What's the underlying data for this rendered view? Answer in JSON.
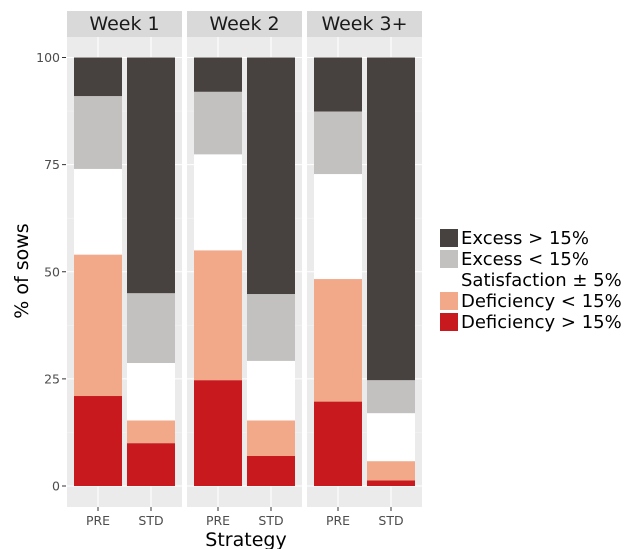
{
  "chart_data": {
    "type": "bar",
    "stacked": true,
    "faceted": true,
    "xlabel": "Strategy",
    "ylabel": "% of sows",
    "ylim": [
      0,
      100
    ],
    "yticks": [
      "0",
      "25",
      "50",
      "75",
      "100"
    ],
    "grid": true,
    "legend_position": "right",
    "categories": [
      "PRE",
      "STD"
    ],
    "series": [
      {
        "name": "Deficiency > 15%",
        "color": "#c8191e"
      },
      {
        "name": "Deficiency < 15%",
        "color": "#f2a98a"
      },
      {
        "name": "Satisfaction ± 5%",
        "color": "#ffffff"
      },
      {
        "name": "Excess < 15%",
        "color": "#c2c1c0"
      },
      {
        "name": "Excess > 15%",
        "color": "#474240"
      }
    ],
    "legend_order": [
      "Excess > 15%",
      "Excess < 15%",
      "Satisfaction ± 5%",
      "Deficiency < 15%",
      "Deficiency > 15%"
    ],
    "facets": [
      {
        "label": "Week 1",
        "bars": [
          {
            "category": "PRE",
            "values": [
              21,
              33,
              20,
              17,
              9
            ]
          },
          {
            "category": "STD",
            "values": [
              10,
              5.3,
              13.4,
              16.3,
              55
            ]
          }
        ]
      },
      {
        "label": "Week 2",
        "bars": [
          {
            "category": "PRE",
            "values": [
              24.7,
              30.3,
              22.4,
              14.6,
              8
            ]
          },
          {
            "category": "STD",
            "values": [
              7,
              8.3,
              13.9,
              15.6,
              55.2
            ]
          }
        ]
      },
      {
        "label": "Week 3+",
        "bars": [
          {
            "category": "PRE",
            "values": [
              19.7,
              28.6,
              24.5,
              14.6,
              12.6
            ]
          },
          {
            "category": "STD",
            "values": [
              1.3,
              4.5,
              11.2,
              7.7,
              75.3
            ]
          }
        ]
      }
    ]
  }
}
